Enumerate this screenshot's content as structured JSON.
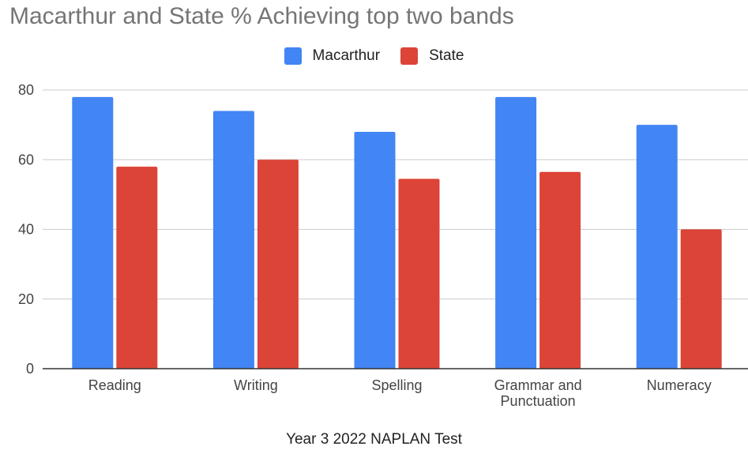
{
  "chart_data": {
    "type": "bar",
    "title": "Macarthur and State % Achieving top two bands",
    "xlabel": "Year 3 2022 NAPLAN Test",
    "ylabel": "",
    "categories": [
      [
        "Reading"
      ],
      [
        "Writing"
      ],
      [
        "Spelling"
      ],
      [
        "Grammar and",
        "Punctuation"
      ],
      [
        "Numeracy"
      ]
    ],
    "series": [
      {
        "name": "Macarthur",
        "color": "#4285f4",
        "values": [
          78,
          74,
          68,
          78,
          70
        ]
      },
      {
        "name": "State",
        "color": "#db4437",
        "values": [
          58,
          60,
          54.5,
          56.5,
          40
        ]
      }
    ],
    "ylim": [
      0,
      80
    ],
    "yticks": [
      "0",
      "20",
      "40",
      "60",
      "80"
    ],
    "grid": true,
    "legend": "top"
  }
}
